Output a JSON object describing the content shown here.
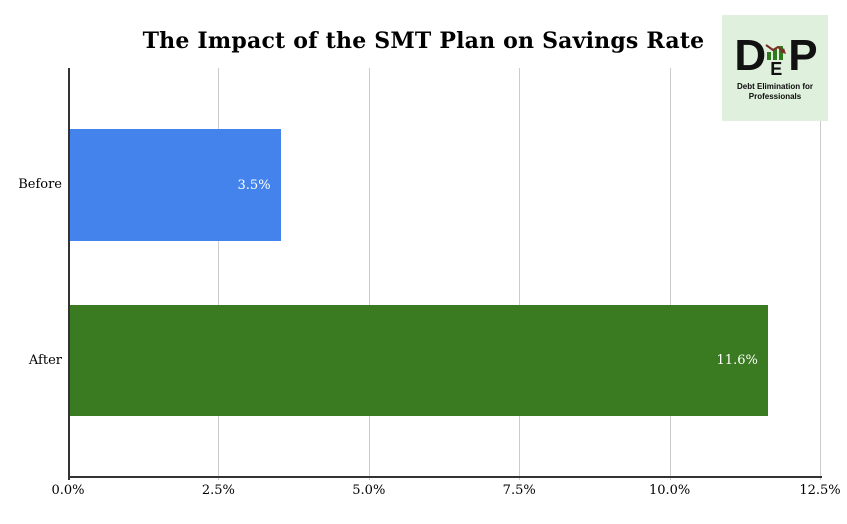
{
  "title": "The Impact of the SMT Plan on Savings Rate",
  "logo": {
    "letter_d": "D",
    "letter_e": "E",
    "letter_p": "P",
    "tagline_line1": "Debt Elimination for",
    "tagline_line2": "Professionals",
    "background_color": "#dff0dc",
    "icon": "mini-bar-chart-with-descending-arrow-icon",
    "icon_bar_color": "#2f7a1f",
    "icon_arrow_color": "#7b2d26"
  },
  "chart_data": {
    "type": "bar",
    "orientation": "horizontal",
    "title": "The Impact of the SMT Plan on Savings Rate",
    "categories": [
      "Before",
      "After"
    ],
    "values": [
      3.5,
      11.6
    ],
    "value_labels": [
      "3.5%",
      "11.6%"
    ],
    "bar_colors": [
      "#4583ec",
      "#3a7a20"
    ],
    "xlabel": "",
    "ylabel": "",
    "xlim": [
      0,
      12.5
    ],
    "x_ticks": [
      0,
      2.5,
      5,
      7.5,
      10,
      12.5
    ],
    "x_tick_labels": [
      "0.0%",
      "2.5%",
      "5.0%",
      "7.5%",
      "10.0%",
      "12.5%"
    ],
    "grid": "vertical-only",
    "gridline_color": "#cccccc",
    "axis_color": "#333333",
    "legend_position": "none",
    "value_label_color": "#ffffff"
  }
}
